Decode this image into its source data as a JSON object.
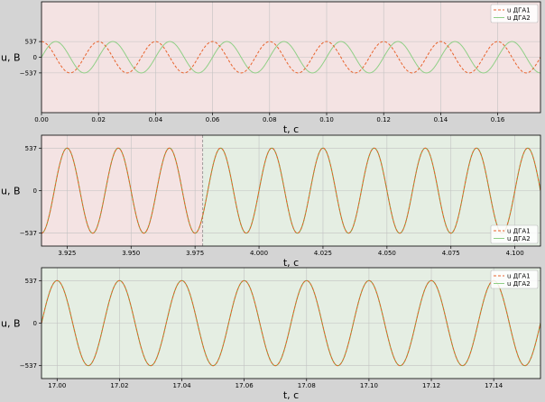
{
  "colors": {
    "figure_bg": "#d4d4d4",
    "region_red": "#f4e3e3",
    "region_green": "#e5eee3",
    "series1": "#e8622c",
    "series2": "#8fcf86",
    "overlap": "#7e9a35",
    "grid": "#c2c2c2",
    "divider": "#8a8a8a"
  },
  "chart_data": [
    {
      "type": "line",
      "xlabel": "t, c",
      "ylabel": "u, В",
      "xlim": [
        0,
        0.175
      ],
      "ylim": [
        -1900,
        1900
      ],
      "xticks": [
        0.0,
        0.02,
        0.04,
        0.06,
        0.08,
        0.1,
        0.12,
        0.14,
        0.16
      ],
      "xtick_labels": [
        "0.00",
        "0.02",
        "0.04",
        "0.06",
        "0.08",
        "0.10",
        "0.12",
        "0.14",
        "0.16"
      ],
      "yticks": [
        -537,
        0,
        537
      ],
      "ytick_labels": [
        "−537",
        "0",
        "537"
      ],
      "grid": true,
      "legend_position": "top-right",
      "background": [
        {
          "from": 0,
          "to": 0.175,
          "color": "red"
        }
      ],
      "series": [
        {
          "name": "u ДГА1",
          "amplitude": 537,
          "frequency_hz": 50,
          "phase_deg": 90,
          "style": "dashed",
          "color_key": "series1"
        },
        {
          "name": "u ДГА2",
          "amplitude": 537,
          "frequency_hz": 50,
          "phase_deg": 0,
          "style": "solid",
          "color_key": "series2"
        }
      ]
    },
    {
      "type": "line",
      "xlabel": "t, c",
      "ylabel": "u, В",
      "xlim": [
        3.915,
        4.11
      ],
      "ylim": [
        -700,
        700
      ],
      "xticks": [
        3.925,
        3.95,
        3.975,
        4.0,
        4.025,
        4.05,
        4.075,
        4.1
      ],
      "xtick_labels": [
        "3.925",
        "3.950",
        "3.975",
        "4.000",
        "4.025",
        "4.050",
        "4.075",
        "4.100"
      ],
      "yticks": [
        -537,
        0,
        537
      ],
      "ytick_labels": [
        "−537",
        "0",
        "537"
      ],
      "grid": true,
      "legend_position": "bottom-right",
      "vline": 3.978,
      "background": [
        {
          "from": 3.915,
          "to": 3.978,
          "color": "red"
        },
        {
          "from": 3.978,
          "to": 4.11,
          "color": "green"
        }
      ],
      "series": [
        {
          "name": "u ДГА1",
          "amplitude": 537,
          "frequency_hz": 50,
          "phase_deg": 0,
          "style": "dashed",
          "color_key": "series1"
        },
        {
          "name": "u ДГА2",
          "amplitude": 537,
          "frequency_hz": 50,
          "phase_deg": 0,
          "style": "solid",
          "color_key": "series2"
        }
      ]
    },
    {
      "type": "line",
      "xlabel": "t, c",
      "ylabel": "u, В",
      "xlim": [
        16.995,
        17.155
      ],
      "ylim": [
        -700,
        700
      ],
      "xticks": [
        17.0,
        17.02,
        17.04,
        17.06,
        17.08,
        17.1,
        17.12,
        17.14
      ],
      "xtick_labels": [
        "17.00",
        "17.02",
        "17.04",
        "17.06",
        "17.08",
        "17.10",
        "17.12",
        "17.14"
      ],
      "yticks": [
        -537,
        0,
        537
      ],
      "ytick_labels": [
        "−537",
        "0",
        "537"
      ],
      "grid": true,
      "legend_position": "top-right",
      "background": [
        {
          "from": 16.995,
          "to": 17.155,
          "color": "green"
        }
      ],
      "series": [
        {
          "name": "u ДГА1",
          "amplitude": 537,
          "frequency_hz": 50,
          "phase_deg": 90,
          "style": "dashed",
          "color_key": "series1"
        },
        {
          "name": "u ДГА2",
          "amplitude": 537,
          "frequency_hz": 50,
          "phase_deg": 90,
          "style": "solid",
          "color_key": "series2"
        }
      ]
    }
  ]
}
